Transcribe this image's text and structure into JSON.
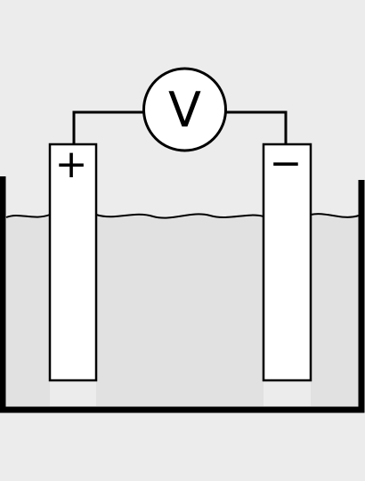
{
  "colors": {
    "background": "#ececec",
    "electrolyte": "#e1e1e1",
    "container": "#000000",
    "electrode": "#ffffff",
    "stroke": "#000000"
  },
  "voltmeter": {
    "symbol": "V"
  },
  "electrodes": {
    "left_sign": "+",
    "right_sign": "−"
  }
}
